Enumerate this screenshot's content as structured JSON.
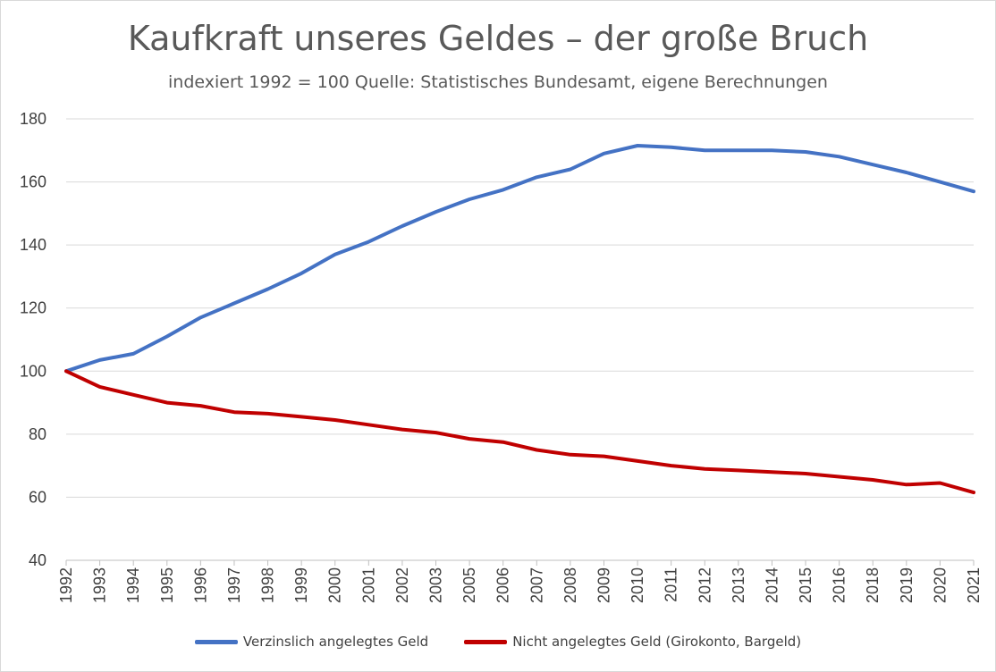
{
  "chart_data": {
    "type": "line",
    "title": "Kaufkraft unseres Geldes – der große Bruch",
    "subtitle": "indexiert 1992 = 100 Quelle: Statistisches Bundesamt, eigene Berechnungen",
    "xlabel": "",
    "ylabel": "",
    "ylim": [
      40,
      180
    ],
    "yticks": [
      40,
      60,
      80,
      100,
      120,
      140,
      160,
      180
    ],
    "xticks": [
      "1992",
      "1993",
      "1994",
      "1995",
      "1996",
      "1997",
      "1998",
      "1999",
      "2000",
      "2001",
      "2002",
      "2003",
      "2005",
      "2006",
      "2007",
      "2008",
      "2009",
      "2010",
      "2011",
      "2012",
      "2013",
      "2014",
      "2015",
      "2016",
      "2018",
      "2019",
      "2020",
      "2021"
    ],
    "grid": "horizontal",
    "legend_position": "bottom",
    "series": [
      {
        "name": "Verzinslich angelegtes Geld",
        "color": "#4472c4",
        "values": [
          100,
          103.5,
          105.5,
          111,
          117,
          121.5,
          126,
          131,
          137,
          141,
          146,
          150.5,
          154.5,
          157.5,
          161.5,
          164,
          169,
          171.5,
          171,
          170,
          170,
          170,
          169.5,
          168,
          165.5,
          163,
          160,
          157
        ]
      },
      {
        "name": "Nicht angelegtes Geld (Girokonto, Bargeld)",
        "color": "#c00000",
        "values": [
          100,
          95,
          92.5,
          90,
          89,
          87,
          86.5,
          85.5,
          84.5,
          83,
          81.5,
          80.5,
          78.5,
          77.5,
          75,
          73.5,
          73,
          71.5,
          70,
          69,
          68.5,
          68,
          67.5,
          66.5,
          65.5,
          64,
          64.5,
          61.5
        ]
      }
    ]
  }
}
